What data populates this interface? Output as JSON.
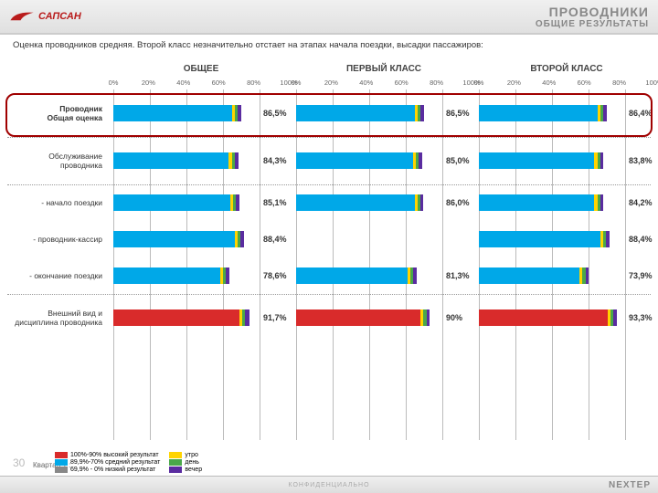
{
  "header": {
    "logo_text": "САПСАН",
    "title": "ПРОВОДНИКИ",
    "subtitle": "ОБЩИЕ РЕЗУЛЬТАТЫ"
  },
  "intro": "Оценка проводников средняя. Второй класс незначительно отстает на этапах начала поездки, высадки пассажиров:",
  "colors": {
    "main": "#00a8e8",
    "alt": "#d92b2b",
    "utro": "#ffd400",
    "den": "#4aa84a",
    "vecher": "#5a2ca0",
    "grid": "#bbbbbb",
    "highlight": "#a00000"
  },
  "charts": {
    "axis_ticks": [
      "0%",
      "20%",
      "40%",
      "60%",
      "80%",
      "100%"
    ],
    "columns": [
      {
        "title": "ОБЩЕЕ"
      },
      {
        "title": "ПЕРВЫЙ КЛАСС"
      },
      {
        "title": "ВТОРОЙ КЛАСС"
      }
    ],
    "rows": [
      {
        "label": "Проводник\nОбщая оценка",
        "bold": true,
        "highlight": true,
        "bars": [
          {
            "main": 80,
            "segs": [
              2,
              2,
              2.5
            ],
            "val": "86,5%",
            "color": "main"
          },
          {
            "main": 80,
            "segs": [
              2,
              2,
              2.5
            ],
            "val": "86,5%",
            "color": "main"
          },
          {
            "main": 80,
            "segs": [
              2,
              2,
              2.4
            ],
            "val": "86,4%",
            "color": "main"
          }
        ]
      },
      {
        "label": "Обслуживание\nпроводника",
        "bars": [
          {
            "main": 78,
            "segs": [
              2,
              2,
              2.3
            ],
            "val": "84,3%",
            "color": "main"
          },
          {
            "main": 79,
            "segs": [
              2,
              2,
              2
            ],
            "val": "85,0%",
            "color": "main"
          },
          {
            "main": 78,
            "segs": [
              2,
              2,
              1.8
            ],
            "val": "83,8%",
            "color": "main"
          }
        ]
      },
      {
        "label": "- начало поездки",
        "short": true,
        "bars": [
          {
            "main": 79,
            "segs": [
              2,
              2,
              2.1
            ],
            "val": "85,1%",
            "color": "main"
          },
          {
            "main": 80,
            "segs": [
              2,
              2,
              2
            ],
            "val": "86,0%",
            "color": "main"
          },
          {
            "main": 78,
            "segs": [
              2,
              2,
              2.2
            ],
            "val": "84,2%",
            "color": "main"
          }
        ]
      },
      {
        "label": "- проводник-кассир",
        "short": true,
        "bars": [
          {
            "main": 82,
            "segs": [
              2,
              2,
              2.4
            ],
            "val": "88,4%",
            "color": "main"
          },
          {
            "main": 0,
            "segs": [],
            "val": "",
            "color": "main",
            "empty": true
          },
          {
            "main": 82,
            "segs": [
              2,
              2,
              2.4
            ],
            "val": "88,4%",
            "color": "main"
          }
        ]
      },
      {
        "label": "- окончание поездки",
        "short": true,
        "bars": [
          {
            "main": 72,
            "segs": [
              2,
              2,
              2.6
            ],
            "val": "78,6%",
            "color": "main"
          },
          {
            "main": 75,
            "segs": [
              2,
              2,
              2.3
            ],
            "val": "81,3%",
            "color": "main"
          },
          {
            "main": 68,
            "segs": [
              2,
              2,
              1.9
            ],
            "val": "73,9%",
            "color": "main"
          }
        ]
      },
      {
        "label": "Внешний вид и\nдисциплина проводника",
        "bars": [
          {
            "main": 85,
            "segs": [
              2,
              2,
              2.7
            ],
            "val": "91,7%",
            "color": "alt"
          },
          {
            "main": 84,
            "segs": [
              2,
              2,
              2
            ],
            "val": "90%",
            "color": "alt"
          },
          {
            "main": 87,
            "segs": [
              2,
              2,
              2.3
            ],
            "val": "93,3%",
            "color": "alt"
          }
        ]
      }
    ]
  },
  "legend": {
    "ranges": [
      {
        "color": "#d92b2b",
        "text": "100%-90% высокий результат"
      },
      {
        "color": "#00a8e8",
        "text": "89,9%-70% средний результат"
      },
      {
        "color": "#888888",
        "text": "69,9% - 0% низкий результат"
      }
    ],
    "times": [
      {
        "color": "#ffd400",
        "text": "утро"
      },
      {
        "color": "#4aa84a",
        "text": "день"
      },
      {
        "color": "#5a2ca0",
        "text": "вечер"
      }
    ]
  },
  "footer": {
    "page": "30",
    "quarter": "Квартал 1 :",
    "confidential": "КОНФИДЕНЦИАЛЬНО",
    "brand": "NEXTEP"
  }
}
